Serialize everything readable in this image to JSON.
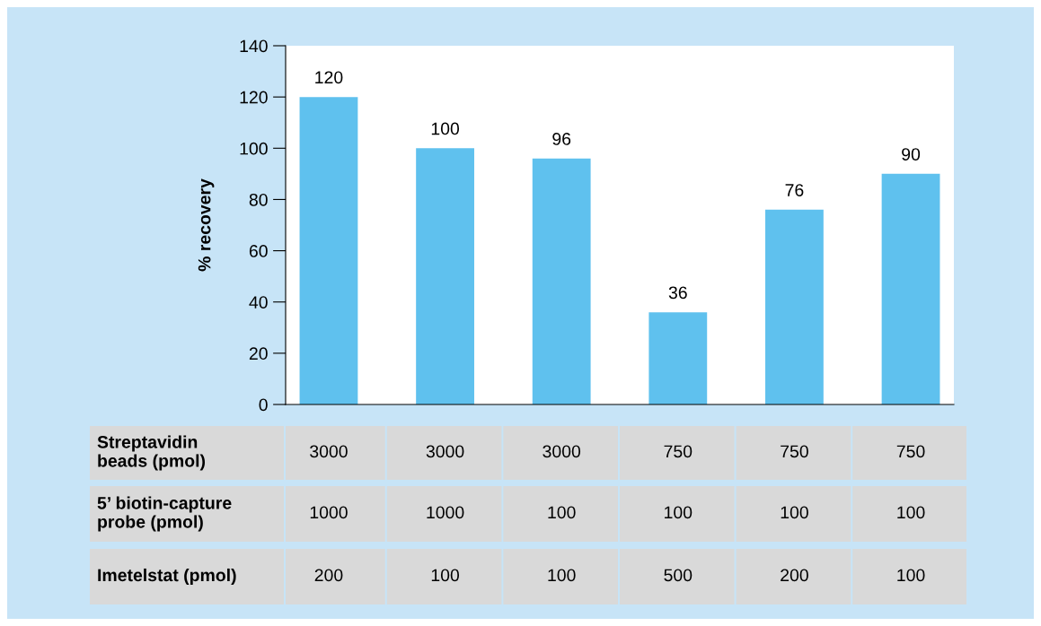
{
  "chart_data": {
    "type": "bar",
    "ylabel": "% recovery",
    "categories": [
      null,
      null,
      null,
      null,
      null,
      null
    ],
    "values": [
      120,
      100,
      96,
      36,
      76,
      90
    ],
    "color": "#5fc1ee",
    "ylim": [
      0,
      140
    ],
    "yticks": [
      0,
      20,
      40,
      60,
      80,
      100,
      120,
      140
    ],
    "data_labels": true,
    "grid": false,
    "tick_labels": "y",
    "annotations": [
      "Streptavidin\nbeads (pmol)",
      "3000",
      "3000",
      "3000",
      "750",
      "750",
      "750",
      "5’ biotin-capture\nprobe (pmol)",
      "1000",
      "1000",
      "100",
      "100",
      "100",
      "100",
      "Imetelstat (pmol)",
      "200",
      "100",
      "100",
      "500",
      "200",
      "100"
    ]
  }
}
